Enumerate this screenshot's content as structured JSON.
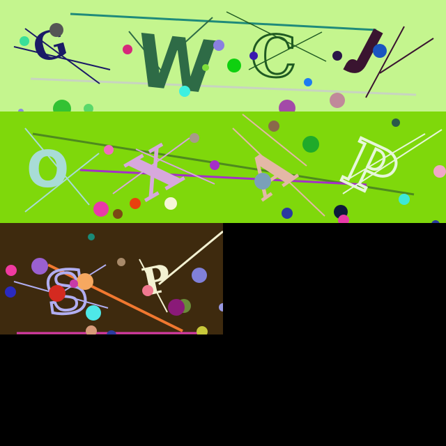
{
  "background": "#000000",
  "colors": {
    "panel_top_bg": "#c4f58e",
    "panel_mid_bg": "#7fd80b",
    "panel_bottom_bg": "#3e2a0e"
  },
  "panel_top": {
    "letters": [
      {
        "char": "G",
        "color": "#1a1a66"
      },
      {
        "char": "W",
        "color": "#2e6b46"
      },
      {
        "char": "C",
        "color": "#1f5a22"
      },
      {
        "char": "J",
        "color": "#3a1430"
      }
    ]
  },
  "panel_mid": {
    "letters": [
      {
        "char": "O",
        "color": "#a8dcd6"
      },
      {
        "char": "X",
        "color": "#d7a8dc"
      },
      {
        "char": "A",
        "color": "#e3b8a6"
      },
      {
        "char": "P",
        "color": "#e6f7da"
      }
    ]
  },
  "panel_bottom": {
    "letters": [
      {
        "char": "S",
        "color": "#b1aef2"
      },
      {
        "char": "P",
        "color": "#f3f1d2"
      }
    ]
  }
}
